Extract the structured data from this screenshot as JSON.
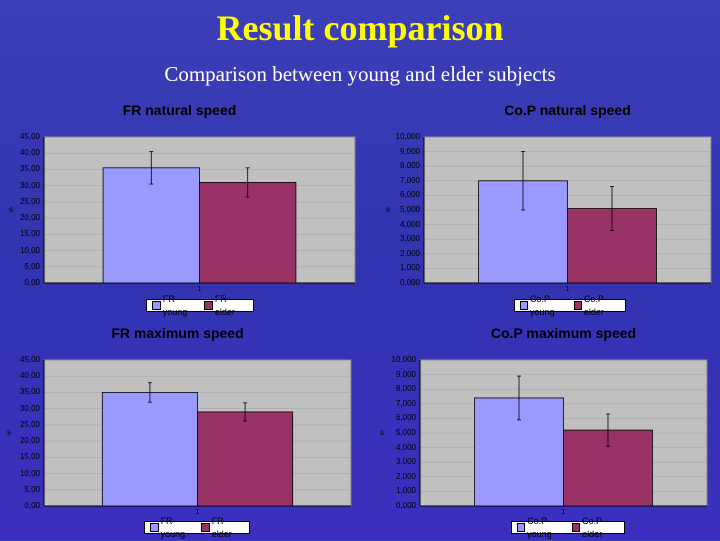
{
  "header": {
    "title": "Result comparison",
    "subtitle": "Comparison between young and elder subjects"
  },
  "colors": {
    "young": "#9999ff",
    "elder": "#993366",
    "plot_bg": "#c0c0c0"
  },
  "chart_data": [
    {
      "type": "bar",
      "title": "FR natural speed",
      "categories": [
        "1"
      ],
      "ylabel": "s",
      "ylim": [
        0,
        45
      ],
      "yticks": [
        "0,00",
        "5,00",
        "10,00",
        "15,00",
        "20,00",
        "25,00",
        "30,00",
        "35,00",
        "40,00",
        "45,00"
      ],
      "series": [
        {
          "name": "FR young",
          "values": [
            35.5
          ],
          "error": [
            5
          ]
        },
        {
          "name": "FR elder",
          "values": [
            31
          ],
          "error": [
            4.5
          ]
        }
      ]
    },
    {
      "type": "bar",
      "title": "Co.P natural speed",
      "categories": [
        "1"
      ],
      "ylabel": "s",
      "ylim": [
        0,
        10
      ],
      "yticks": [
        "0,000",
        "1,000",
        "2,000",
        "3,000",
        "4,000",
        "5,000",
        "6,000",
        "7,000",
        "8,000",
        "9,000",
        "10,000"
      ],
      "series": [
        {
          "name": "Co.P young",
          "values": [
            7
          ],
          "error": [
            2
          ]
        },
        {
          "name": "Co.P elder",
          "values": [
            5.1
          ],
          "error": [
            1.5
          ]
        }
      ]
    },
    {
      "type": "bar",
      "title": "FR maximum speed",
      "categories": [
        "1"
      ],
      "ylabel": "s",
      "ylim": [
        0,
        45
      ],
      "yticks": [
        "0,00",
        "5,00",
        "10,00",
        "15,00",
        "20,00",
        "25,00",
        "30,00",
        "35,00",
        "40,00",
        "45,00"
      ],
      "series": [
        {
          "name": "FR young",
          "values": [
            35
          ],
          "error": [
            3
          ]
        },
        {
          "name": "FR elder",
          "values": [
            29
          ],
          "error": [
            2.8
          ]
        }
      ]
    },
    {
      "type": "bar",
      "title": "Co.P maximum speed",
      "categories": [
        "1"
      ],
      "ylabel": "s",
      "ylim": [
        0,
        10
      ],
      "yticks": [
        "0,000",
        "1,000",
        "2,000",
        "3,000",
        "4,000",
        "5,000",
        "6,000",
        "7,000",
        "8,000",
        "9,000",
        "10,000"
      ],
      "series": [
        {
          "name": "Co.P young",
          "values": [
            7.4
          ],
          "error": [
            1.5
          ]
        },
        {
          "name": "Co.P elder",
          "values": [
            5.2
          ],
          "error": [
            1.1
          ]
        }
      ]
    }
  ]
}
